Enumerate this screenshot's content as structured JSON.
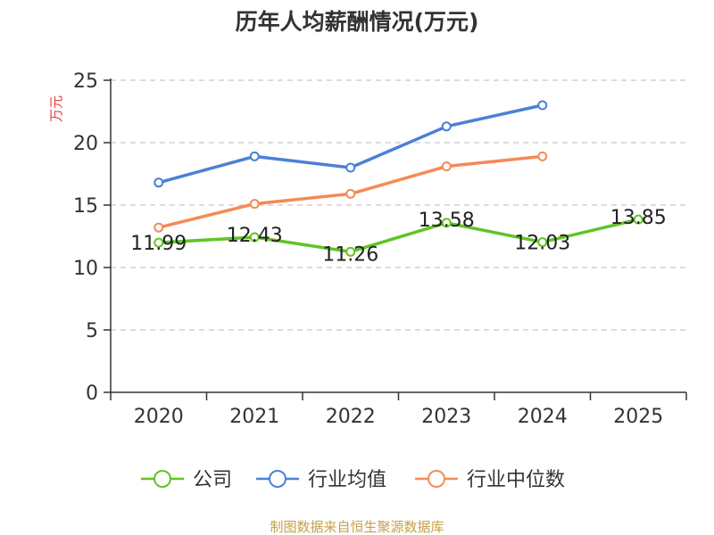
{
  "chart_data": {
    "type": "line",
    "title": "历年人均薪酬情况(万元)",
    "ylabel": "万元",
    "xlabel": "",
    "categories": [
      "2020",
      "2021",
      "2022",
      "2023",
      "2024",
      "2025"
    ],
    "ylim": [
      0,
      25
    ],
    "yticks": [
      0,
      5,
      10,
      15,
      20,
      25
    ],
    "grid": true,
    "legend_position": "bottom",
    "series": [
      {
        "name": "公司",
        "color": "#5fc424",
        "values": [
          11.99,
          12.43,
          11.26,
          13.58,
          12.03,
          13.85
        ],
        "data_labels": [
          "11.99",
          "12.43",
          "11.26",
          "13.58",
          "12.03",
          "13.85"
        ]
      },
      {
        "name": "行业均值",
        "color": "#4b80d8",
        "values": [
          16.8,
          18.9,
          18.0,
          21.3,
          23.0,
          null
        ]
      },
      {
        "name": "行业中位数",
        "color": "#f58a55",
        "values": [
          13.2,
          15.1,
          15.9,
          18.1,
          18.9,
          null
        ]
      }
    ]
  },
  "source": "制图数据来自恒生聚源数据库"
}
